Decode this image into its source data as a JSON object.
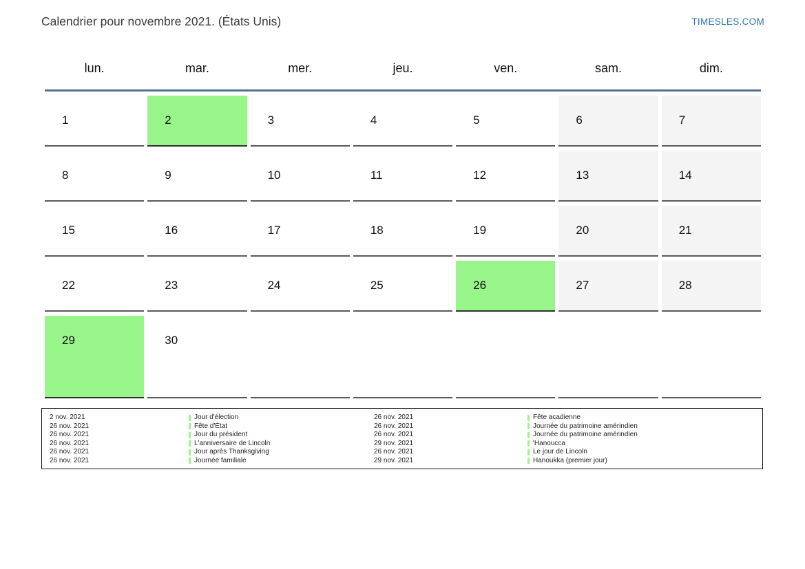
{
  "page": {
    "title": "Calendrier pour novembre 2021. (États Unis)",
    "site_link": "TIMESLES.COM"
  },
  "colors": {
    "holiday_green": "#98f58a",
    "weekend_gray": "#f4f4f4",
    "header_rule_blue": "#527191",
    "link_blue": "#2e74b5"
  },
  "calendar": {
    "day_headers": [
      "lun.",
      "mar.",
      "mer.",
      "jeu.",
      "ven.",
      "sam.",
      "dim."
    ],
    "weeks": [
      [
        {
          "day": "1"
        },
        {
          "day": "2",
          "type": "holiday"
        },
        {
          "day": "3"
        },
        {
          "day": "4"
        },
        {
          "day": "5"
        },
        {
          "day": "6",
          "type": "weekend"
        },
        {
          "day": "7",
          "type": "weekend"
        }
      ],
      [
        {
          "day": "8"
        },
        {
          "day": "9"
        },
        {
          "day": "10"
        },
        {
          "day": "11"
        },
        {
          "day": "12"
        },
        {
          "day": "13",
          "type": "weekend"
        },
        {
          "day": "14",
          "type": "weekend"
        }
      ],
      [
        {
          "day": "15"
        },
        {
          "day": "16"
        },
        {
          "day": "17"
        },
        {
          "day": "18"
        },
        {
          "day": "19"
        },
        {
          "day": "20",
          "type": "weekend"
        },
        {
          "day": "21",
          "type": "weekend"
        }
      ],
      [
        {
          "day": "22"
        },
        {
          "day": "23"
        },
        {
          "day": "24"
        },
        {
          "day": "25"
        },
        {
          "day": "26",
          "type": "holiday"
        },
        {
          "day": "27",
          "type": "weekend"
        },
        {
          "day": "28",
          "type": "weekend"
        }
      ],
      [
        {
          "day": "29",
          "type": "holiday"
        },
        {
          "day": "30"
        },
        {
          "day": ""
        },
        {
          "day": ""
        },
        {
          "day": ""
        },
        {
          "day": ""
        },
        {
          "day": ""
        }
      ]
    ]
  },
  "legend": {
    "rows": [
      {
        "d1": "2 nov. 2021",
        "e1": "Jour d'élection",
        "d2": "26 nov. 2021",
        "e2": "Fête acadienne"
      },
      {
        "d1": "26 nov. 2021",
        "e1": "Fête d'État",
        "d2": "26 nov. 2021",
        "e2": "Journée du patrimoine amérindien"
      },
      {
        "d1": "26 nov. 2021",
        "e1": "Jour du président",
        "d2": "26 nov. 2021",
        "e2": "Journée du patrimoine amérindien"
      },
      {
        "d1": "26 nov. 2021",
        "e1": "L'anniversaire de Lincoln",
        "d2": "29 nov. 2021",
        "e2": "'Hanoucca"
      },
      {
        "d1": "26 nov. 2021",
        "e1": "Jour après Thanksgiving",
        "d2": "26 nov. 2021",
        "e2": "Le jour de Lincoln"
      },
      {
        "d1": "26 nov. 2021",
        "e1": "Journée familiale",
        "d2": "29 nov. 2021",
        "e2": "Hanoukka (premier jour)"
      }
    ]
  }
}
